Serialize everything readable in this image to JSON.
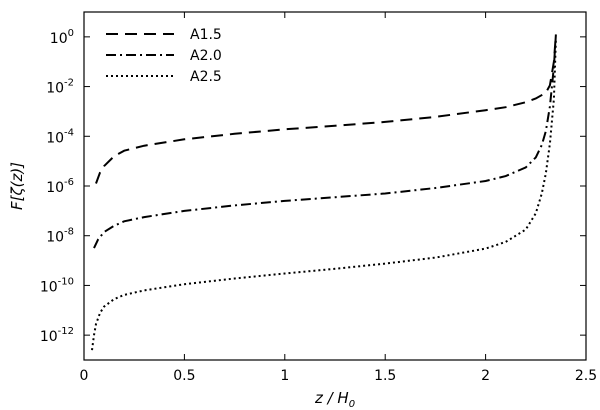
{
  "chart_data": {
    "type": "line",
    "title": "",
    "xlabel": "z / H",
    "xlabel_sub": "0",
    "ylabel": "F[ζ(z)]",
    "xlim": [
      0,
      2.5
    ],
    "ylim_log10": [
      -13,
      1
    ],
    "y_scale": "log",
    "grid": false,
    "legend_position": "top-left",
    "x_ticks": [
      {
        "value": 0,
        "label": "0"
      },
      {
        "value": 0.5,
        "label": "0.5"
      },
      {
        "value": 1,
        "label": "1"
      },
      {
        "value": 1.5,
        "label": "1.5"
      },
      {
        "value": 2,
        "label": "2"
      },
      {
        "value": 2.5,
        "label": "2.5"
      }
    ],
    "y_ticks": [
      {
        "exp": 0,
        "base": "10",
        "sup": "0"
      },
      {
        "exp": -2,
        "base": "10",
        "sup": "-2"
      },
      {
        "exp": -4,
        "base": "10",
        "sup": "-4"
      },
      {
        "exp": -6,
        "base": "10",
        "sup": "-6"
      },
      {
        "exp": -8,
        "base": "10",
        "sup": "-8"
      },
      {
        "exp": -10,
        "base": "10",
        "sup": "-10"
      },
      {
        "exp": -12,
        "base": "10",
        "sup": "-12"
      }
    ],
    "series": [
      {
        "name": "A1.5",
        "dash": "dashed",
        "x": [
          0.06,
          0.08,
          0.1,
          0.15,
          0.2,
          0.3,
          0.5,
          0.75,
          1.0,
          1.25,
          1.5,
          1.75,
          2.0,
          2.1,
          2.2,
          2.25,
          2.3,
          2.32,
          2.34,
          2.35
        ],
        "log10_y": [
          -5.9,
          -5.45,
          -5.2,
          -4.8,
          -4.58,
          -4.38,
          -4.12,
          -3.9,
          -3.72,
          -3.58,
          -3.42,
          -3.22,
          -2.95,
          -2.83,
          -2.63,
          -2.48,
          -2.25,
          -1.95,
          -1.0,
          0.1
        ]
      },
      {
        "name": "A2.0",
        "dash": "dash-dot",
        "x": [
          0.05,
          0.07,
          0.1,
          0.15,
          0.2,
          0.3,
          0.5,
          0.75,
          1.0,
          1.25,
          1.5,
          1.75,
          2.0,
          2.1,
          2.2,
          2.25,
          2.28,
          2.3,
          2.32,
          2.34,
          2.35
        ],
        "log10_y": [
          -8.5,
          -8.15,
          -7.85,
          -7.6,
          -7.42,
          -7.25,
          -7.0,
          -6.78,
          -6.6,
          -6.45,
          -6.3,
          -6.08,
          -5.8,
          -5.6,
          -5.25,
          -4.85,
          -4.35,
          -3.8,
          -2.8,
          -1.2,
          0.1
        ]
      },
      {
        "name": "A2.5",
        "dash": "dotted",
        "x": [
          0.04,
          0.05,
          0.06,
          0.08,
          0.1,
          0.15,
          0.2,
          0.3,
          0.5,
          0.75,
          1.0,
          1.25,
          1.5,
          1.75,
          2.0,
          2.1,
          2.2,
          2.25,
          2.28,
          2.3,
          2.32,
          2.34,
          2.35
        ],
        "log10_y": [
          -12.6,
          -12.0,
          -11.55,
          -11.1,
          -10.85,
          -10.55,
          -10.38,
          -10.2,
          -9.95,
          -9.72,
          -9.52,
          -9.33,
          -9.12,
          -8.88,
          -8.52,
          -8.25,
          -7.75,
          -7.1,
          -6.3,
          -5.5,
          -4.3,
          -2.5,
          -0.1
        ]
      }
    ]
  }
}
